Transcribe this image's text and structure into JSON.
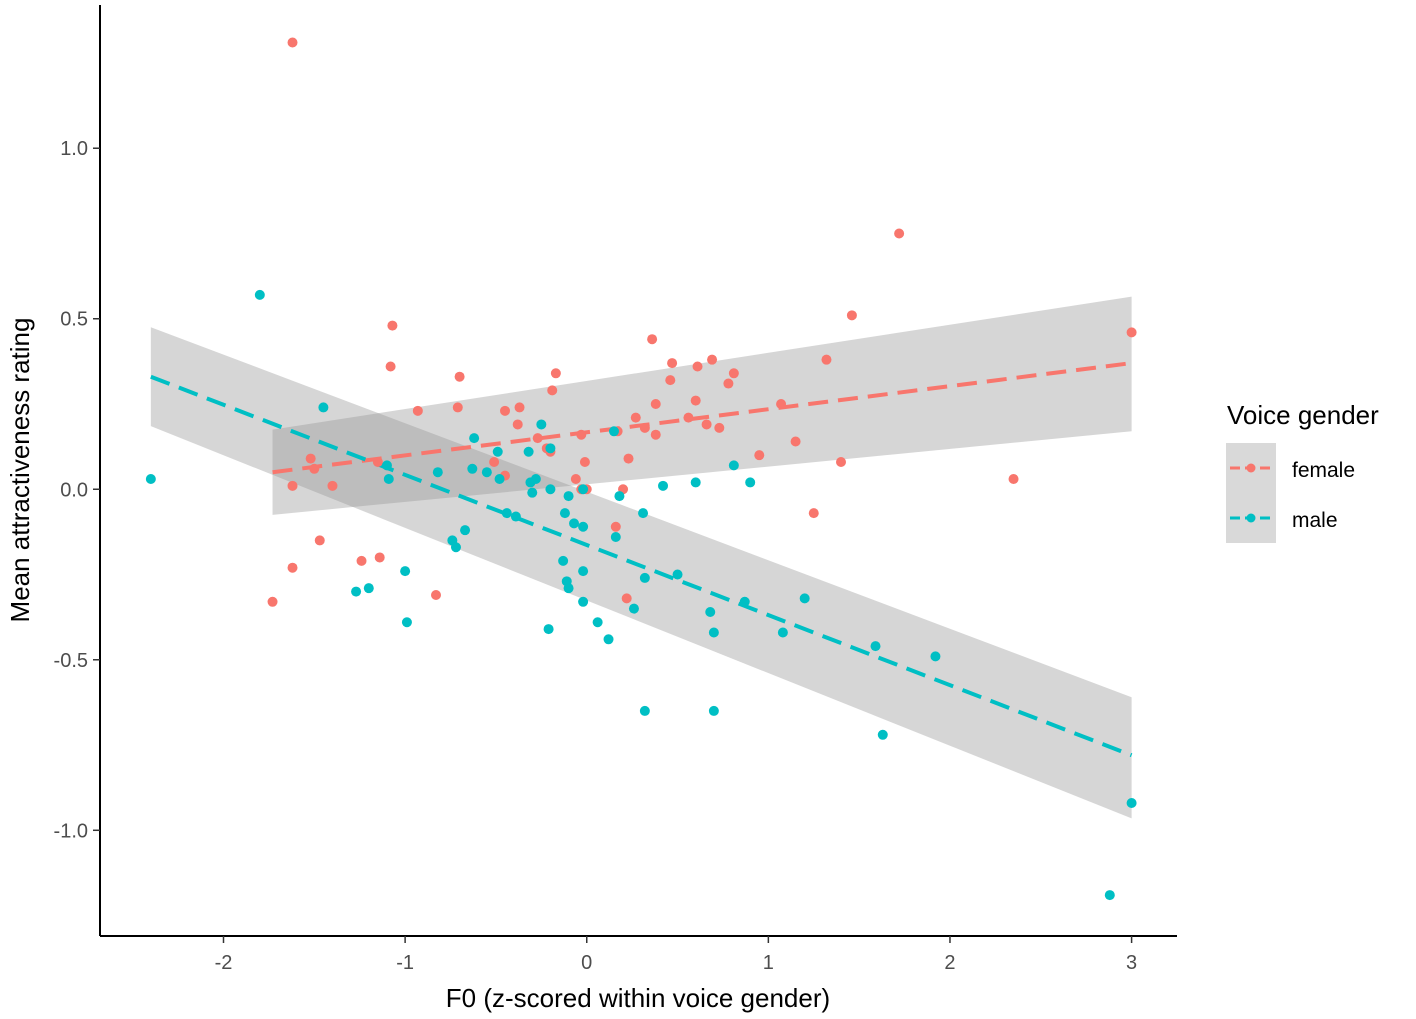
{
  "chart_data": {
    "type": "scatter",
    "title": "",
    "xlabel": "F0 (z-scored within voice gender)",
    "ylabel": "Mean attractiveness rating",
    "xlim": [
      -2.68,
      3.25
    ],
    "ylim": [
      -1.31,
      1.42
    ],
    "x_ticks": [
      -2,
      -1,
      0,
      1,
      2,
      3
    ],
    "x_tick_labels": [
      "-2",
      "-1",
      "0",
      "1",
      "2",
      "3"
    ],
    "y_ticks": [
      -1.0,
      -0.5,
      0.0,
      0.5,
      1.0
    ],
    "y_tick_labels": [
      "-1.0",
      "-0.5",
      "0.0",
      "0.5",
      "1.0"
    ],
    "grid": false,
    "legend": {
      "title": "Voice gender",
      "position": "right",
      "entries": [
        "female",
        "male"
      ]
    },
    "series": [
      {
        "name": "female",
        "color": "#F8766D",
        "fit": {
          "x_range": [
            -1.73,
            3.0
          ],
          "start": 0.05,
          "end": 0.37,
          "ci_start": [
            -0.075,
            0.175
          ],
          "ci_end": [
            0.17,
            0.565
          ]
        },
        "points": [
          [
            -1.62,
            1.31
          ],
          [
            1.72,
            0.75
          ],
          [
            3.0,
            0.46
          ],
          [
            1.46,
            0.51
          ],
          [
            0.36,
            0.44
          ],
          [
            -1.07,
            0.48
          ],
          [
            -1.08,
            0.36
          ],
          [
            -0.7,
            0.33
          ],
          [
            -0.17,
            0.34
          ],
          [
            -0.19,
            0.29
          ],
          [
            -0.93,
            0.23
          ],
          [
            -0.71,
            0.24
          ],
          [
            -0.45,
            0.23
          ],
          [
            -0.37,
            0.24
          ],
          [
            0.47,
            0.37
          ],
          [
            0.46,
            0.32
          ],
          [
            0.69,
            0.38
          ],
          [
            0.61,
            0.36
          ],
          [
            0.78,
            0.31
          ],
          [
            0.81,
            0.34
          ],
          [
            1.32,
            0.38
          ],
          [
            0.38,
            0.25
          ],
          [
            0.6,
            0.26
          ],
          [
            0.56,
            0.21
          ],
          [
            0.66,
            0.19
          ],
          [
            0.73,
            0.18
          ],
          [
            1.07,
            0.25
          ],
          [
            -0.38,
            0.19
          ],
          [
            -0.27,
            0.15
          ],
          [
            -0.22,
            0.12
          ],
          [
            -0.2,
            0.11
          ],
          [
            -0.03,
            0.16
          ],
          [
            0.17,
            0.17
          ],
          [
            0.27,
            0.21
          ],
          [
            0.32,
            0.18
          ],
          [
            0.38,
            0.16
          ],
          [
            1.15,
            0.14
          ],
          [
            0.95,
            0.1
          ],
          [
            1.4,
            0.08
          ],
          [
            -0.51,
            0.08
          ],
          [
            -0.45,
            0.04
          ],
          [
            -0.06,
            0.03
          ],
          [
            -0.03,
            0.0
          ],
          [
            -0.01,
            0.08
          ],
          [
            0.0,
            0.0
          ],
          [
            0.23,
            0.09
          ],
          [
            0.2,
            0.0
          ],
          [
            -1.52,
            0.09
          ],
          [
            -1.5,
            0.06
          ],
          [
            -1.62,
            0.01
          ],
          [
            -1.4,
            0.01
          ],
          [
            -1.15,
            0.08
          ],
          [
            2.35,
            0.03
          ],
          [
            1.25,
            -0.07
          ],
          [
            0.16,
            -0.11
          ],
          [
            -1.47,
            -0.15
          ],
          [
            -1.14,
            -0.2
          ],
          [
            -1.24,
            -0.21
          ],
          [
            -1.62,
            -0.23
          ],
          [
            -1.73,
            -0.33
          ],
          [
            -0.83,
            -0.31
          ],
          [
            0.22,
            -0.32
          ]
        ]
      },
      {
        "name": "male",
        "color": "#00BFC4",
        "fit": {
          "x_range": [
            -2.4,
            3.0
          ],
          "start": 0.33,
          "end": -0.78,
          "ci_start": [
            0.185,
            0.475
          ],
          "ci_end": [
            -0.965,
            -0.61
          ]
        },
        "points": [
          [
            -1.8,
            0.57
          ],
          [
            -2.4,
            0.03
          ],
          [
            -1.45,
            0.24
          ],
          [
            -0.25,
            0.19
          ],
          [
            -0.62,
            0.15
          ],
          [
            -0.49,
            0.11
          ],
          [
            -0.32,
            0.11
          ],
          [
            -0.2,
            0.12
          ],
          [
            0.15,
            0.17
          ],
          [
            -0.63,
            0.06
          ],
          [
            -0.55,
            0.05
          ],
          [
            -0.48,
            0.03
          ],
          [
            -0.31,
            0.02
          ],
          [
            -0.28,
            0.03
          ],
          [
            -0.3,
            -0.01
          ],
          [
            -0.2,
            0.0
          ],
          [
            -0.1,
            -0.02
          ],
          [
            -0.02,
            0.0
          ],
          [
            0.42,
            0.01
          ],
          [
            0.6,
            0.02
          ],
          [
            0.81,
            0.07
          ],
          [
            0.9,
            0.02
          ],
          [
            -1.1,
            0.07
          ],
          [
            -1.09,
            0.03
          ],
          [
            -0.82,
            0.05
          ],
          [
            -0.44,
            -0.07
          ],
          [
            -0.39,
            -0.08
          ],
          [
            -0.12,
            -0.07
          ],
          [
            -0.07,
            -0.1
          ],
          [
            -0.02,
            -0.11
          ],
          [
            0.18,
            -0.02
          ],
          [
            0.31,
            -0.07
          ],
          [
            -0.67,
            -0.12
          ],
          [
            -0.74,
            -0.15
          ],
          [
            -0.72,
            -0.17
          ],
          [
            0.16,
            -0.14
          ],
          [
            -0.13,
            -0.21
          ],
          [
            -0.11,
            -0.27
          ],
          [
            -0.1,
            -0.29
          ],
          [
            -0.02,
            -0.24
          ],
          [
            -0.02,
            -0.33
          ],
          [
            0.32,
            -0.26
          ],
          [
            0.5,
            -0.25
          ],
          [
            0.26,
            -0.35
          ],
          [
            0.68,
            -0.36
          ],
          [
            0.87,
            -0.33
          ],
          [
            1.2,
            -0.32
          ],
          [
            -1.0,
            -0.24
          ],
          [
            -1.27,
            -0.3
          ],
          [
            -1.2,
            -0.29
          ],
          [
            -0.99,
            -0.39
          ],
          [
            0.06,
            -0.39
          ],
          [
            0.12,
            -0.44
          ],
          [
            -0.21,
            -0.41
          ],
          [
            0.7,
            -0.42
          ],
          [
            1.08,
            -0.42
          ],
          [
            1.59,
            -0.46
          ],
          [
            1.92,
            -0.49
          ],
          [
            0.32,
            -0.65
          ],
          [
            0.7,
            -0.65
          ],
          [
            1.63,
            -0.72
          ],
          [
            3.0,
            -0.92
          ],
          [
            2.88,
            -1.19
          ]
        ]
      }
    ]
  }
}
